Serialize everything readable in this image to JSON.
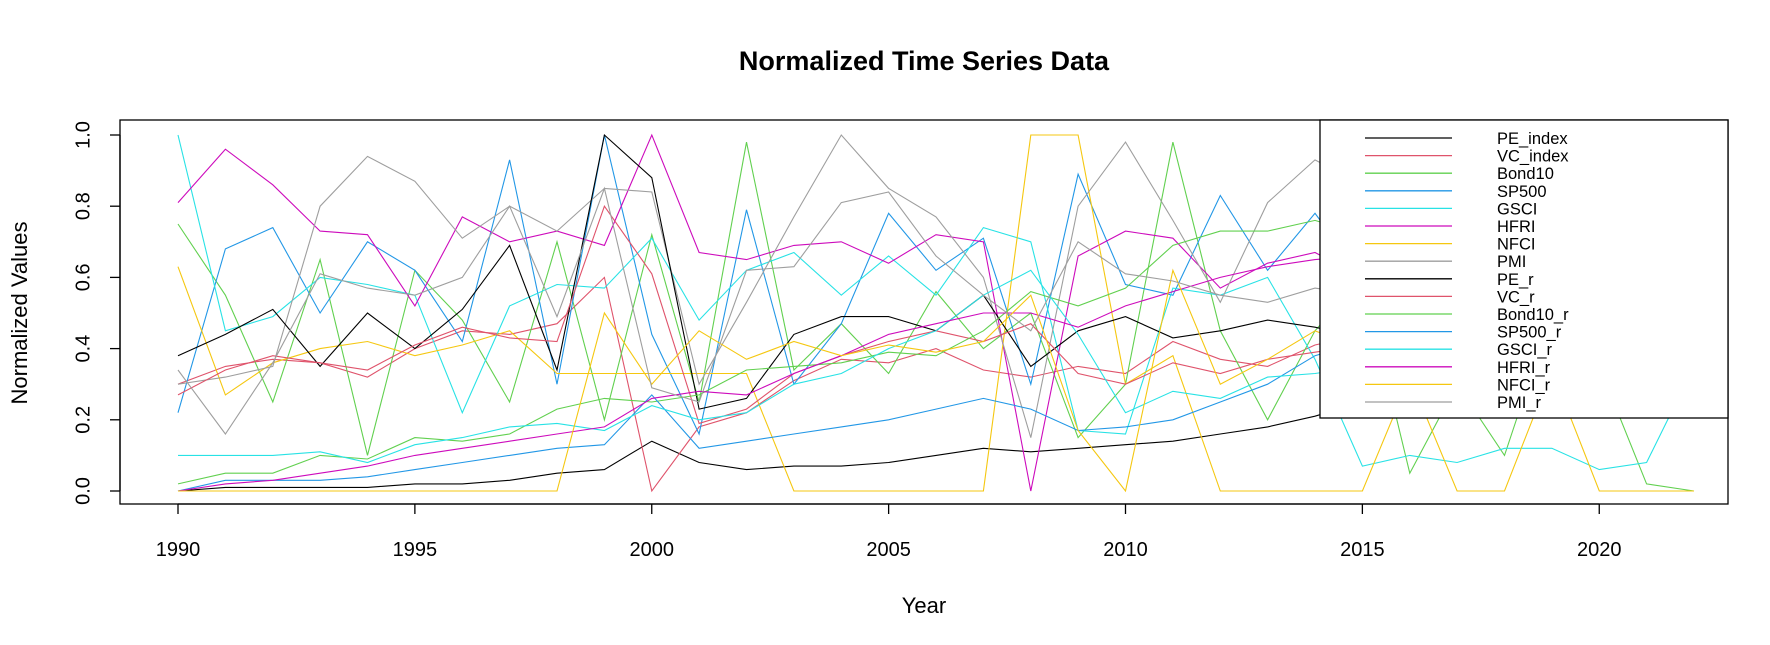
{
  "chart_data": {
    "type": "line",
    "title": "Normalized Time Series Data",
    "xlabel": "Year",
    "ylabel": "Normalized Values",
    "xlim": [
      1990,
      2022
    ],
    "ylim": [
      0,
      1
    ],
    "x_ticks": [
      "1990",
      "1995",
      "2000",
      "2005",
      "2010",
      "2015",
      "2020"
    ],
    "y_ticks": [
      "0.0",
      "0.2",
      "0.4",
      "0.6",
      "0.8",
      "1.0"
    ],
    "grid": false,
    "legend_position": "top-right",
    "x": [
      1990,
      1991,
      1992,
      1993,
      1994,
      1995,
      1996,
      1997,
      1998,
      1999,
      2000,
      2001,
      2002,
      2003,
      2004,
      2005,
      2006,
      2007,
      2008,
      2009,
      2010,
      2011,
      2012,
      2013,
      2014,
      2015,
      2016,
      2017,
      2018,
      2019,
      2020,
      2021,
      2022
    ],
    "series": [
      {
        "name": "PE_index",
        "color": "#000000",
        "values": [
          0.0,
          0.01,
          0.01,
          0.01,
          0.01,
          0.02,
          0.02,
          0.03,
          0.05,
          0.06,
          0.14,
          0.08,
          0.06,
          0.07,
          0.07,
          0.08,
          0.1,
          0.12,
          0.11,
          0.12,
          0.13,
          0.14,
          0.16,
          0.18,
          0.21,
          0.25,
          0.28,
          0.31,
          0.35,
          0.4,
          0.46,
          0.52,
          0.6
        ]
      },
      {
        "name": "VC_index",
        "color": "#DF536B",
        "values": [
          0.3,
          0.35,
          0.37,
          0.36,
          0.32,
          0.4,
          0.45,
          0.44,
          0.47,
          0.6,
          0.0,
          0.18,
          0.22,
          0.31,
          0.37,
          0.36,
          0.4,
          0.34,
          0.32,
          0.35,
          0.33,
          0.42,
          0.37,
          0.35,
          0.41,
          0.44,
          0.39,
          0.42,
          0.38,
          0.45,
          0.41,
          0.48,
          0.43
        ]
      },
      {
        "name": "Bond10",
        "color": "#61D04F",
        "values": [
          0.75,
          0.55,
          0.25,
          0.65,
          0.1,
          0.62,
          0.48,
          0.25,
          0.7,
          0.2,
          0.72,
          0.25,
          0.98,
          0.34,
          0.47,
          0.33,
          0.56,
          0.4,
          0.5,
          0.15,
          0.3,
          0.98,
          0.45,
          0.2,
          0.45,
          0.6,
          0.05,
          0.3,
          0.1,
          0.5,
          0.35,
          0.02,
          0.0
        ]
      },
      {
        "name": "SP500",
        "color": "#2297E6",
        "values": [
          0.22,
          0.68,
          0.74,
          0.5,
          0.7,
          0.62,
          0.42,
          0.93,
          0.3,
          1.0,
          0.44,
          0.16,
          0.79,
          0.3,
          0.47,
          0.78,
          0.62,
          0.71,
          0.3,
          0.89,
          0.58,
          0.55,
          0.83,
          0.62,
          0.78,
          0.6,
          0.45,
          0.5,
          0.42,
          0.55,
          0.6,
          0.5,
          0.7
        ]
      },
      {
        "name": "GSCI",
        "color": "#28E2E5",
        "values": [
          1.0,
          0.45,
          0.49,
          0.6,
          0.58,
          0.55,
          0.22,
          0.52,
          0.58,
          0.57,
          0.71,
          0.48,
          0.62,
          0.67,
          0.55,
          0.66,
          0.55,
          0.74,
          0.7,
          0.17,
          0.16,
          0.57,
          0.55,
          0.6,
          0.37,
          0.07,
          0.1,
          0.08,
          0.12,
          0.12,
          0.06,
          0.08,
          0.35
        ]
      },
      {
        "name": "HFRI",
        "color": "#CD0BBC",
        "values": [
          0.81,
          0.96,
          0.86,
          0.73,
          0.72,
          0.52,
          0.77,
          0.7,
          0.73,
          0.69,
          1.0,
          0.67,
          0.65,
          0.69,
          0.7,
          0.64,
          0.72,
          0.7,
          0.0,
          0.66,
          0.73,
          0.71,
          0.57,
          0.64,
          0.67,
          0.6,
          0.5,
          0.42,
          0.55,
          0.48,
          0.5,
          0.45,
          0.4
        ]
      },
      {
        "name": "NFCI",
        "color": "#F5C710",
        "values": [
          0.63,
          0.27,
          0.36,
          0.4,
          0.42,
          0.38,
          0.41,
          0.45,
          0.33,
          0.33,
          0.33,
          0.33,
          0.33,
          0.0,
          0.0,
          0.0,
          0.0,
          0.0,
          1.0,
          1.0,
          0.3,
          0.38,
          0.0,
          0.0,
          0.0,
          0.0,
          0.32,
          0.0,
          0.0,
          0.34,
          0.0,
          0.0,
          0.0
        ]
      },
      {
        "name": "PMI",
        "color": "#9E9E9E",
        "values": [
          0.3,
          0.32,
          0.35,
          0.8,
          0.94,
          0.87,
          0.71,
          0.8,
          0.73,
          0.85,
          0.84,
          0.3,
          0.53,
          0.77,
          1.0,
          0.85,
          0.77,
          0.6,
          0.15,
          0.8,
          0.98,
          0.76,
          0.53,
          0.81,
          0.93,
          0.86,
          0.7,
          0.75,
          0.82,
          0.76,
          0.72,
          0.68,
          0.74
        ]
      },
      {
        "name": "PE_r",
        "color": "#000000",
        "values": [
          0.38,
          0.44,
          0.51,
          0.35,
          0.5,
          0.4,
          0.51,
          0.69,
          0.34,
          1.0,
          0.88,
          0.23,
          0.26,
          0.44,
          0.49,
          0.49,
          0.45,
          0.55,
          0.35,
          0.45,
          0.49,
          0.43,
          0.45,
          0.48,
          0.46,
          0.43,
          0.45,
          0.47,
          0.44,
          0.46,
          0.42,
          0.44,
          0.45
        ]
      },
      {
        "name": "VC_r",
        "color": "#DF536B",
        "values": [
          0.27,
          0.34,
          0.38,
          0.36,
          0.34,
          0.41,
          0.46,
          0.43,
          0.42,
          0.8,
          0.61,
          0.19,
          0.23,
          0.33,
          0.38,
          0.42,
          0.45,
          0.42,
          0.47,
          0.33,
          0.3,
          0.36,
          0.33,
          0.37,
          0.39,
          0.41,
          0.39,
          0.4,
          0.38,
          0.42,
          0.4,
          0.41,
          0.39
        ]
      },
      {
        "name": "Bond10_r",
        "color": "#61D04F",
        "values": [
          0.02,
          0.05,
          0.05,
          0.1,
          0.09,
          0.15,
          0.14,
          0.16,
          0.23,
          0.26,
          0.25,
          0.27,
          0.34,
          0.35,
          0.36,
          0.39,
          0.38,
          0.45,
          0.56,
          0.52,
          0.57,
          0.69,
          0.73,
          0.73,
          0.76,
          0.72,
          0.7,
          0.68,
          0.7,
          0.72,
          0.7,
          0.69,
          0.71
        ]
      },
      {
        "name": "SP500_r",
        "color": "#2297E6",
        "values": [
          0.0,
          0.03,
          0.03,
          0.03,
          0.04,
          0.06,
          0.08,
          0.1,
          0.12,
          0.13,
          0.27,
          0.12,
          0.14,
          0.16,
          0.18,
          0.2,
          0.23,
          0.26,
          0.23,
          0.17,
          0.18,
          0.2,
          0.25,
          0.3,
          0.38,
          0.42,
          0.45,
          0.48,
          0.5,
          0.52,
          0.55,
          0.57,
          0.6
        ]
      },
      {
        "name": "GSCI_r",
        "color": "#28E2E5",
        "values": [
          0.1,
          0.1,
          0.1,
          0.11,
          0.08,
          0.13,
          0.15,
          0.18,
          0.19,
          0.17,
          0.24,
          0.2,
          0.22,
          0.3,
          0.33,
          0.4,
          0.45,
          0.55,
          0.62,
          0.44,
          0.22,
          0.28,
          0.26,
          0.32,
          0.33,
          0.35,
          0.37,
          0.38,
          0.39,
          0.4,
          0.42,
          0.43,
          0.44
        ]
      },
      {
        "name": "HFRI_r",
        "color": "#CD0BBC",
        "values": [
          0.0,
          0.02,
          0.03,
          0.05,
          0.07,
          0.1,
          0.12,
          0.14,
          0.16,
          0.18,
          0.26,
          0.28,
          0.27,
          0.33,
          0.38,
          0.44,
          0.47,
          0.5,
          0.5,
          0.46,
          0.52,
          0.56,
          0.6,
          0.63,
          0.65,
          0.66,
          0.67,
          0.68,
          0.69,
          0.7,
          0.71,
          0.72,
          0.73
        ]
      },
      {
        "name": "NFCI_r",
        "color": "#F5C710",
        "values": [
          0.0,
          0.0,
          0.0,
          0.0,
          0.0,
          0.0,
          0.0,
          0.0,
          0.0,
          0.5,
          0.3,
          0.45,
          0.37,
          0.42,
          0.38,
          0.41,
          0.39,
          0.42,
          0.55,
          0.17,
          0.0,
          0.62,
          0.3,
          0.37,
          0.45,
          0.4,
          0.35,
          0.38,
          0.36,
          0.4,
          0.38,
          0.37,
          0.39
        ]
      },
      {
        "name": "PMI_r",
        "color": "#9E9E9E",
        "values": [
          0.34,
          0.16,
          0.36,
          0.61,
          0.57,
          0.55,
          0.6,
          0.8,
          0.49,
          0.85,
          0.29,
          0.25,
          0.62,
          0.63,
          0.81,
          0.84,
          0.66,
          0.55,
          0.45,
          0.7,
          0.61,
          0.59,
          0.55,
          0.53,
          0.57,
          0.55,
          0.53,
          0.52,
          0.54,
          0.55,
          0.53,
          0.54,
          0.55
        ]
      }
    ]
  }
}
